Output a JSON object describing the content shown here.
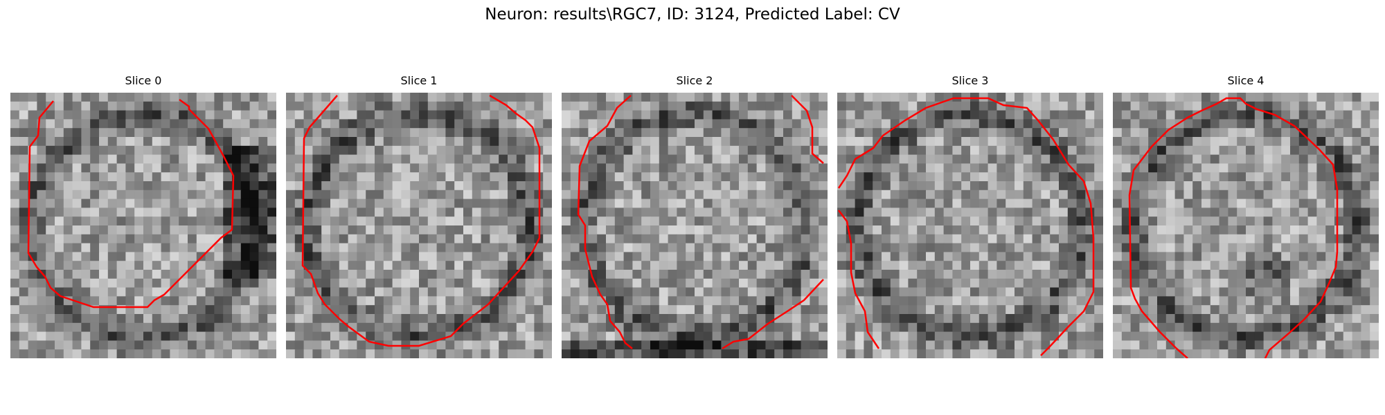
{
  "figure": {
    "suptitle": "Neuron: results\\RGC7, ID: 3124, Predicted Label: CV",
    "contour_color": "#ff0000",
    "panels": [
      {
        "title": "Slice 0",
        "seed": 11,
        "shade": "darkright"
      },
      {
        "title": "Slice 1",
        "seed": 27,
        "shade": "ring"
      },
      {
        "title": "Slice 2",
        "seed": 43,
        "shade": "darkbottom"
      },
      {
        "title": "Slice 3",
        "seed": 59,
        "shade": "ring"
      },
      {
        "title": "Slice 4",
        "seed": 71,
        "shade": "spot"
      }
    ]
  }
}
